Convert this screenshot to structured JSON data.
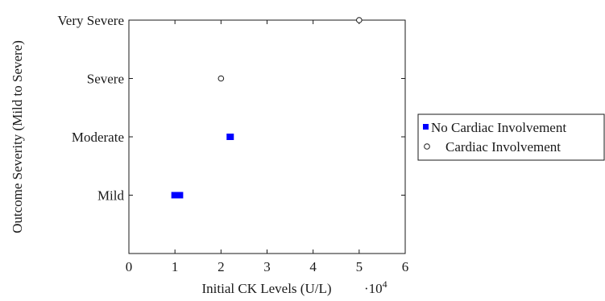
{
  "chart_data": {
    "type": "scatter",
    "xlabel": "Initial CK Levels (U/L)",
    "x_multiplier_label": "·10",
    "x_multiplier_exponent": "4",
    "ylabel": "Outcome Severity (Mild to Severe)",
    "xlim": [
      0,
      60000
    ],
    "x_ticks": [
      0,
      10000,
      20000,
      30000,
      40000,
      50000,
      60000
    ],
    "x_tick_labels": [
      "0",
      "1",
      "2",
      "3",
      "4",
      "5",
      "6"
    ],
    "y_categories": [
      "Mild",
      "Moderate",
      "Severe",
      "Very Severe"
    ],
    "ylim": [
      0,
      4
    ],
    "grid": false,
    "legend_position": "right",
    "series": [
      {
        "name": "No Cardiac Involvement",
        "marker": "filled-square",
        "color": "#0000ff",
        "points": [
          {
            "x": 10000,
            "y": "Mild"
          },
          {
            "x": 11000,
            "y": "Mild"
          },
          {
            "x": 22000,
            "y": "Moderate"
          }
        ]
      },
      {
        "name": "Cardiac Involvement",
        "marker": "open-circle",
        "color": "#1a1a1a",
        "points": [
          {
            "x": 20000,
            "y": "Severe"
          },
          {
            "x": 50000,
            "y": "Very Severe"
          }
        ]
      }
    ]
  }
}
